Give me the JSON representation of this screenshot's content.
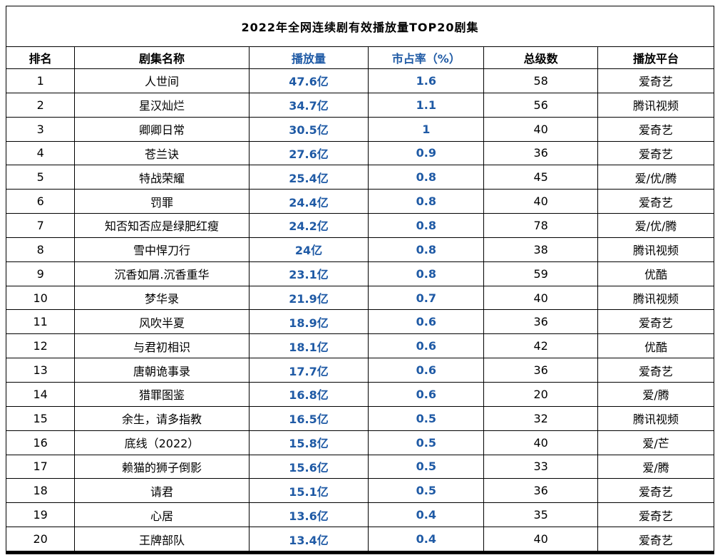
{
  "colors": {
    "accent_blue": "#1F5AA5",
    "border": "#000000",
    "background": "#FFFFFF",
    "text": "#000000"
  },
  "chart_data": {
    "type": "table",
    "title": "2022年全网连续剧有效播放量TOP20剧集",
    "columns": [
      "排名",
      "剧集名称",
      "播放量",
      "市占率（%）",
      "总级数",
      "播放平台"
    ],
    "accent_columns": [
      2,
      3
    ],
    "rows": [
      [
        "1",
        "人世间",
        "47.6亿",
        "1.6",
        "58",
        "爱奇艺"
      ],
      [
        "2",
        "星汉灿烂",
        "34.7亿",
        "1.1",
        "56",
        "腾讯视频"
      ],
      [
        "3",
        "卿卿日常",
        "30.5亿",
        "1",
        "40",
        "爱奇艺"
      ],
      [
        "4",
        "苍兰诀",
        "27.6亿",
        "0.9",
        "36",
        "爱奇艺"
      ],
      [
        "5",
        "特战荣耀",
        "25.4亿",
        "0.8",
        "45",
        "爱/优/腾"
      ],
      [
        "6",
        "罚罪",
        "24.4亿",
        "0.8",
        "40",
        "爱奇艺"
      ],
      [
        "7",
        "知否知否应是绿肥红瘦",
        "24.2亿",
        "0.8",
        "78",
        "爱/优/腾"
      ],
      [
        "8",
        "雪中悍刀行",
        "24亿",
        "0.8",
        "38",
        "腾讯视频"
      ],
      [
        "9",
        "沉香如屑.沉香重华",
        "23.1亿",
        "0.8",
        "59",
        "优酷"
      ],
      [
        "10",
        "梦华录",
        "21.9亿",
        "0.7",
        "40",
        "腾讯视频"
      ],
      [
        "11",
        "风吹半夏",
        "18.9亿",
        "0.6",
        "36",
        "爱奇艺"
      ],
      [
        "12",
        "与君初相识",
        "18.1亿",
        "0.6",
        "42",
        "优酷"
      ],
      [
        "13",
        "唐朝诡事录",
        "17.7亿",
        "0.6",
        "36",
        "爱奇艺"
      ],
      [
        "14",
        "猎罪图鉴",
        "16.8亿",
        "0.6",
        "20",
        "爱/腾"
      ],
      [
        "15",
        "余生，请多指教",
        "16.5亿",
        "0.5",
        "32",
        "腾讯视频"
      ],
      [
        "16",
        "底线（2022）",
        "15.8亿",
        "0.5",
        "40",
        "爱/芒"
      ],
      [
        "17",
        "赖猫的狮子倒影",
        "15.6亿",
        "0.5",
        "33",
        "爱/腾"
      ],
      [
        "18",
        "请君",
        "15.1亿",
        "0.5",
        "36",
        "爱奇艺"
      ],
      [
        "19",
        "心居",
        "13.6亿",
        "0.4",
        "35",
        "爱奇艺"
      ],
      [
        "20",
        "王牌部队",
        "13.4亿",
        "0.4",
        "40",
        "爱奇艺"
      ]
    ]
  }
}
